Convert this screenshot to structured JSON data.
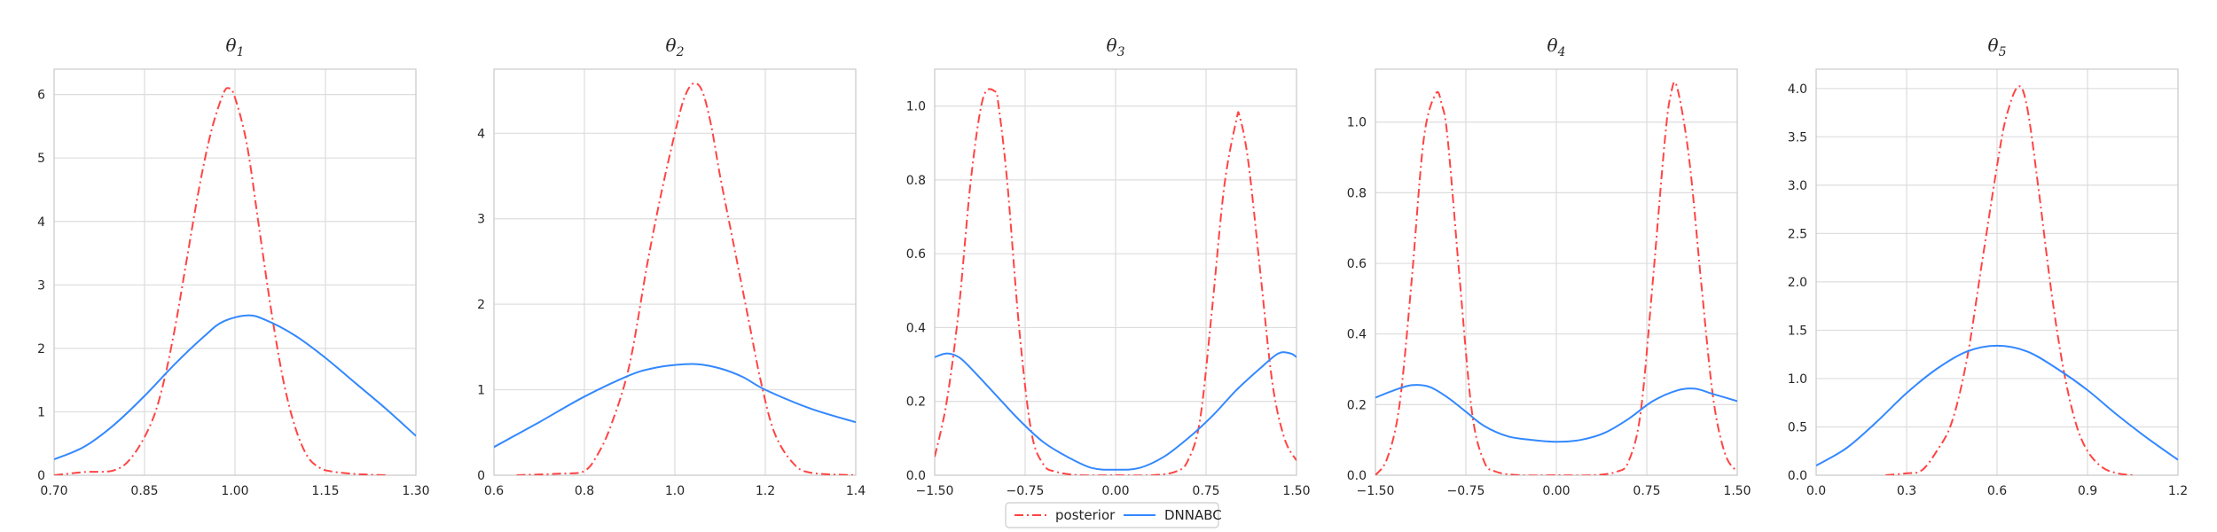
{
  "chart_data": [
    {
      "type": "line",
      "title": "θ1",
      "title_symbol": "θ",
      "title_sub": "1",
      "xlim": [
        0.7,
        1.3
      ],
      "ylim": [
        0,
        6.4
      ],
      "xticks": [
        "0.70",
        "0.85",
        "1.00",
        "1.15",
        "1.30"
      ],
      "yticks": [
        "0",
        "1",
        "2",
        "3",
        "4",
        "5",
        "6"
      ],
      "grid": true,
      "series": [
        {
          "name": "posterior",
          "color": "#ff4444",
          "style": "dashdot",
          "x": [
            0.7,
            0.75,
            0.8,
            0.83,
            0.86,
            0.88,
            0.9,
            0.92,
            0.94,
            0.96,
            0.98,
            0.99,
            1.0,
            1.02,
            1.04,
            1.06,
            1.08,
            1.1,
            1.12,
            1.14,
            1.16,
            1.2,
            1.25
          ],
          "y": [
            0.0,
            0.05,
            0.08,
            0.3,
            0.8,
            1.4,
            2.3,
            3.4,
            4.5,
            5.4,
            6.0,
            6.1,
            5.95,
            5.2,
            3.9,
            2.6,
            1.5,
            0.75,
            0.3,
            0.12,
            0.06,
            0.02,
            0.0
          ]
        },
        {
          "name": "DNNABC",
          "color": "#3388ff",
          "style": "solid",
          "x": [
            0.7,
            0.75,
            0.8,
            0.85,
            0.9,
            0.95,
            0.98,
            1.02,
            1.05,
            1.1,
            1.15,
            1.2,
            1.25,
            1.3
          ],
          "y": [
            0.25,
            0.45,
            0.8,
            1.25,
            1.75,
            2.2,
            2.42,
            2.52,
            2.45,
            2.2,
            1.85,
            1.45,
            1.05,
            0.62
          ]
        }
      ]
    },
    {
      "type": "line",
      "title": "θ2",
      "title_symbol": "θ",
      "title_sub": "2",
      "xlim": [
        0.6,
        1.4
      ],
      "ylim": [
        0,
        4.75
      ],
      "xticks": [
        "0.6",
        "0.8",
        "1.0",
        "1.2",
        "1.4"
      ],
      "yticks": [
        "0",
        "1",
        "2",
        "3",
        "4"
      ],
      "grid": true,
      "series": [
        {
          "name": "posterior",
          "color": "#ff4444",
          "style": "dashdot",
          "x": [
            0.65,
            0.75,
            0.8,
            0.83,
            0.86,
            0.9,
            0.94,
            0.97,
            1.0,
            1.02,
            1.04,
            1.06,
            1.08,
            1.1,
            1.13,
            1.16,
            1.19,
            1.22,
            1.26,
            1.3,
            1.4
          ],
          "y": [
            0.0,
            0.02,
            0.05,
            0.25,
            0.6,
            1.3,
            2.5,
            3.3,
            4.0,
            4.4,
            4.58,
            4.5,
            4.1,
            3.5,
            2.7,
            1.9,
            1.1,
            0.5,
            0.15,
            0.03,
            0.0
          ]
        },
        {
          "name": "DNNABC",
          "color": "#3388ff",
          "style": "solid",
          "x": [
            0.6,
            0.7,
            0.8,
            0.9,
            0.95,
            1.0,
            1.05,
            1.1,
            1.15,
            1.2,
            1.3,
            1.4
          ],
          "y": [
            0.33,
            0.62,
            0.92,
            1.17,
            1.25,
            1.29,
            1.3,
            1.25,
            1.15,
            1.0,
            0.78,
            0.62
          ]
        }
      ]
    },
    {
      "type": "line",
      "title": "θ3",
      "title_symbol": "θ",
      "title_sub": "3",
      "xlim": [
        -1.5,
        1.5
      ],
      "ylim": [
        0,
        1.1
      ],
      "xticks": [
        "−1.50",
        "−0.75",
        "0.00",
        "0.75",
        "1.50"
      ],
      "yticks": [
        "0.0",
        "0.2",
        "0.4",
        "0.6",
        "0.8",
        "1.0"
      ],
      "grid": true,
      "series": [
        {
          "name": "posterior",
          "color": "#ff4444",
          "style": "dashdot",
          "x": [
            -1.5,
            -1.4,
            -1.3,
            -1.2,
            -1.1,
            -1.0,
            -0.97,
            -0.9,
            -0.8,
            -0.7,
            -0.6,
            -0.5,
            -0.3,
            0.0,
            0.3,
            0.5,
            0.6,
            0.7,
            0.8,
            0.9,
            1.0,
            1.03,
            1.1,
            1.2,
            1.3,
            1.4,
            1.5
          ],
          "y": [
            0.05,
            0.2,
            0.45,
            0.8,
            1.02,
            1.04,
            1.0,
            0.8,
            0.4,
            0.12,
            0.03,
            0.01,
            0.0,
            0.0,
            0.0,
            0.01,
            0.04,
            0.15,
            0.45,
            0.78,
            0.96,
            0.97,
            0.85,
            0.55,
            0.25,
            0.1,
            0.04
          ]
        },
        {
          "name": "DNNABC",
          "color": "#3388ff",
          "style": "solid",
          "x": [
            -1.5,
            -1.4,
            -1.3,
            -1.2,
            -1.0,
            -0.8,
            -0.6,
            -0.4,
            -0.2,
            0.0,
            0.2,
            0.4,
            0.6,
            0.8,
            1.0,
            1.2,
            1.35,
            1.45,
            1.5
          ],
          "y": [
            0.32,
            0.33,
            0.32,
            0.29,
            0.22,
            0.15,
            0.09,
            0.05,
            0.02,
            0.015,
            0.02,
            0.05,
            0.1,
            0.16,
            0.23,
            0.29,
            0.33,
            0.33,
            0.32
          ]
        }
      ]
    },
    {
      "type": "line",
      "title": "θ4",
      "title_symbol": "θ",
      "title_sub": "4",
      "xlim": [
        -1.5,
        1.5
      ],
      "ylim": [
        0,
        1.15
      ],
      "xticks": [
        "−1.50",
        "−0.75",
        "0.00",
        "0.75",
        "1.50"
      ],
      "yticks": [
        "0.0",
        "0.2",
        "0.4",
        "0.6",
        "0.8",
        "1.0"
      ],
      "grid": true,
      "series": [
        {
          "name": "posterior",
          "color": "#ff4444",
          "style": "dashdot",
          "x": [
            -1.5,
            -1.4,
            -1.3,
            -1.2,
            -1.1,
            -1.0,
            -0.95,
            -0.9,
            -0.8,
            -0.7,
            -0.6,
            -0.5,
            -0.3,
            0.0,
            0.3,
            0.5,
            0.6,
            0.7,
            0.8,
            0.9,
            0.95,
            1.0,
            1.1,
            1.2,
            1.3,
            1.4,
            1.5
          ],
          "y": [
            0.0,
            0.05,
            0.2,
            0.55,
            0.95,
            1.08,
            1.05,
            0.95,
            0.55,
            0.18,
            0.04,
            0.01,
            0.0,
            0.0,
            0.0,
            0.01,
            0.04,
            0.18,
            0.55,
            0.95,
            1.08,
            1.1,
            0.9,
            0.55,
            0.22,
            0.06,
            0.01
          ]
        },
        {
          "name": "DNNABC",
          "color": "#3388ff",
          "style": "solid",
          "x": [
            -1.5,
            -1.35,
            -1.2,
            -1.05,
            -0.9,
            -0.75,
            -0.6,
            -0.4,
            -0.2,
            0.0,
            0.2,
            0.4,
            0.6,
            0.8,
            1.0,
            1.15,
            1.3,
            1.5
          ],
          "y": [
            0.22,
            0.24,
            0.255,
            0.25,
            0.22,
            0.18,
            0.14,
            0.11,
            0.1,
            0.095,
            0.1,
            0.12,
            0.16,
            0.21,
            0.24,
            0.245,
            0.23,
            0.21
          ]
        }
      ]
    },
    {
      "type": "line",
      "title": "θ5",
      "title_symbol": "θ",
      "title_sub": "5",
      "xlim": [
        0.0,
        1.2
      ],
      "ylim": [
        0,
        4.2
      ],
      "xticks": [
        "0.0",
        "0.3",
        "0.6",
        "0.9",
        "1.2"
      ],
      "yticks": [
        "0.0",
        "0.5",
        "1.0",
        "1.5",
        "2.0",
        "2.5",
        "3.0",
        "3.5",
        "4.0"
      ],
      "grid": true,
      "series": [
        {
          "name": "posterior",
          "color": "#ff4444",
          "style": "dashdot",
          "x": [
            0.23,
            0.3,
            0.35,
            0.4,
            0.45,
            0.5,
            0.55,
            0.6,
            0.63,
            0.67,
            0.7,
            0.74,
            0.78,
            0.82,
            0.86,
            0.9,
            0.95,
            1.0,
            1.05
          ],
          "y": [
            0.0,
            0.02,
            0.05,
            0.25,
            0.55,
            1.2,
            2.2,
            3.2,
            3.7,
            4.02,
            3.8,
            2.9,
            1.9,
            1.1,
            0.55,
            0.25,
            0.08,
            0.02,
            0.0
          ]
        },
        {
          "name": "DNNABC",
          "color": "#3388ff",
          "style": "solid",
          "x": [
            0.0,
            0.1,
            0.2,
            0.3,
            0.4,
            0.5,
            0.6,
            0.7,
            0.8,
            0.9,
            1.0,
            1.1,
            1.2
          ],
          "y": [
            0.1,
            0.28,
            0.55,
            0.85,
            1.1,
            1.28,
            1.34,
            1.28,
            1.1,
            0.88,
            0.62,
            0.38,
            0.16
          ]
        }
      ]
    }
  ],
  "legend": {
    "placement": "bottom-center",
    "items": [
      {
        "label": "posterior",
        "color": "#ff4444",
        "style": "dashdot"
      },
      {
        "label": "DNNABC",
        "color": "#3388ff",
        "style": "solid"
      }
    ]
  }
}
